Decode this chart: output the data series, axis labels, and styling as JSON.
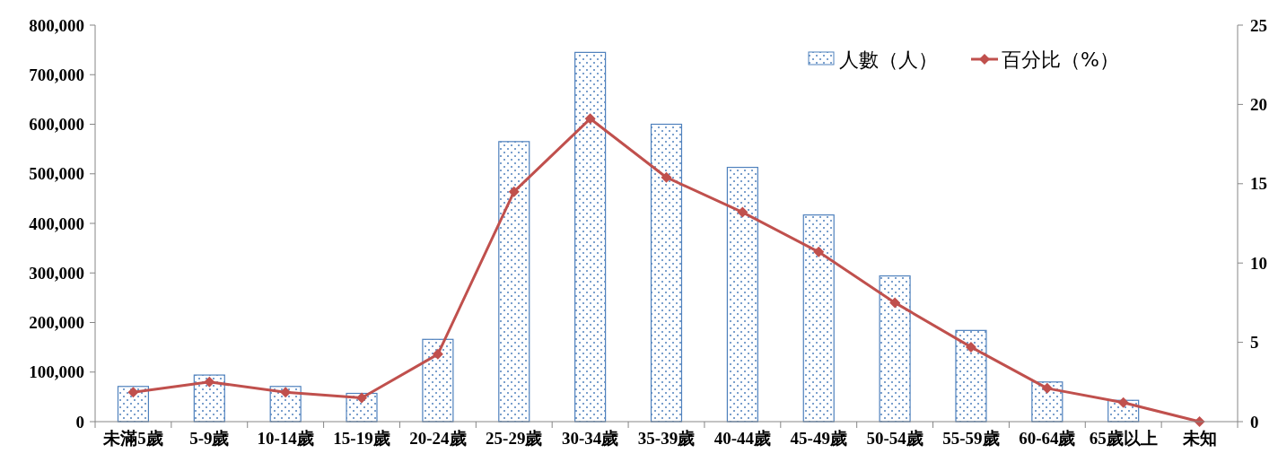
{
  "chart_data": {
    "type": "bar",
    "categories": [
      "未滿5歲",
      "5-9歲",
      "10-14歲",
      "15-19歲",
      "20-24歲",
      "25-29歲",
      "30-34歲",
      "35-39歲",
      "40-44歲",
      "45-49歲",
      "50-54歲",
      "55-59歲",
      "60-64歲",
      "65歲以上",
      "未知"
    ],
    "series": [
      {
        "name": "人數（人）",
        "color": "#4f81bd",
        "values": [
          71000,
          94000,
          71000,
          57000,
          166000,
          565000,
          745000,
          600000,
          513000,
          417000,
          294000,
          184000,
          80000,
          43000,
          0
        ]
      },
      {
        "name": "百分比（%）",
        "type": "line",
        "axis": "y2",
        "color": "#c0504d",
        "marker": "diamond",
        "values": [
          1.85,
          2.5,
          1.85,
          1.5,
          4.25,
          14.5,
          19.1,
          15.4,
          13.2,
          10.7,
          7.5,
          4.7,
          2.1,
          1.2,
          0
        ]
      }
    ],
    "ylim": [
      0,
      800000
    ],
    "yticks": [
      0,
      {
        "value": 100000,
        "label": "100,000"
      },
      {
        "value": 200000,
        "label": "200,000"
      },
      {
        "value": 300000,
        "label": "300,000"
      },
      {
        "value": 400000,
        "label": "400,000"
      },
      {
        "value": 500000,
        "label": "500,000"
      },
      {
        "value": 600000,
        "label": "600,000"
      },
      {
        "value": 700000,
        "label": "700,000"
      },
      {
        "value": 800000,
        "label": "800,000"
      }
    ],
    "y2lim": [
      0,
      25
    ],
    "y2ticks": [
      0,
      5,
      10,
      15,
      20,
      25
    ],
    "legend": "top right",
    "grid": false
  }
}
